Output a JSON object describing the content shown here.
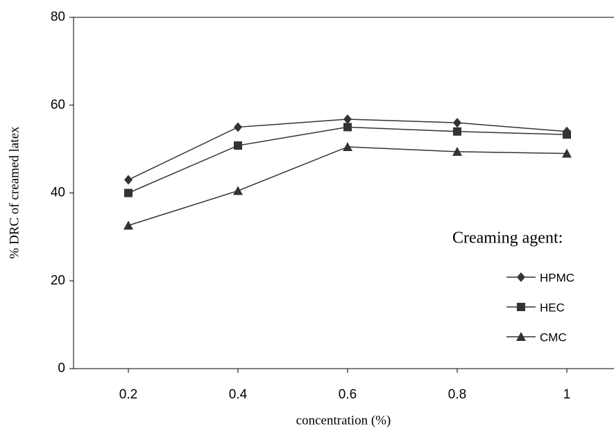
{
  "chart_data": {
    "type": "line",
    "x_label": "concentration (%)",
    "y_label": "% DRC of creamed latex",
    "legend_title": "Creaming agent:",
    "x": [
      0.2,
      0.4,
      0.6,
      0.8,
      1
    ],
    "series": [
      {
        "name": "HPMC",
        "color": "#333333",
        "marker": "diamond",
        "values": [
          43,
          55,
          56.8,
          56,
          54
        ]
      },
      {
        "name": "HEC",
        "color": "#333333",
        "marker": "square",
        "values": [
          40,
          50.8,
          55,
          54,
          53.3
        ]
      },
      {
        "name": "CMC",
        "color": "#333333",
        "marker": "triangle",
        "values": [
          32.6,
          40.5,
          50.5,
          49.4,
          49
        ]
      }
    ],
    "xlim": [
      0.1,
      1.1
    ],
    "xticks": [
      0.2,
      0.4,
      0.6,
      0.8,
      1
    ],
    "ylim": [
      0,
      80
    ],
    "yticks": [
      0,
      20,
      40,
      60,
      80
    ],
    "grid": false,
    "legend": "right"
  }
}
